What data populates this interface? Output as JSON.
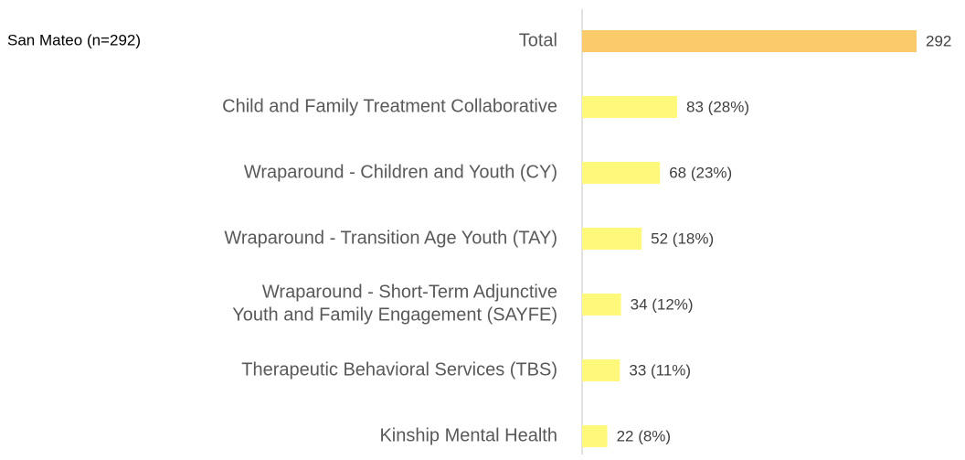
{
  "chart_data": {
    "type": "barh",
    "title": "San Mateo (n=292)",
    "categories": [
      "Total",
      "Child and Family Treatment Collaborative",
      "Wraparound - Children and Youth (CY)",
      "Wraparound - Transition Age Youth (TAY)",
      "Wraparound - Short-Term Adjunctive\nYouth and Family Engagement (SAYFE)",
      "Therapeutic Behavioral Services (TBS)",
      "Kinship Mental Health"
    ],
    "values": [
      292,
      83,
      68,
      52,
      34,
      33,
      22
    ],
    "value_labels": [
      "292",
      "83 (28%)",
      "68 (23%)",
      "52 (18%)",
      "34 (12%)",
      "33 (11%)",
      "22 (8%)"
    ],
    "colors": [
      "#f9cb6b",
      "#fff87a",
      "#fff87a",
      "#fff87a",
      "#fff87a",
      "#fff87a",
      "#fff87a"
    ],
    "xlim": [
      0,
      292
    ]
  }
}
